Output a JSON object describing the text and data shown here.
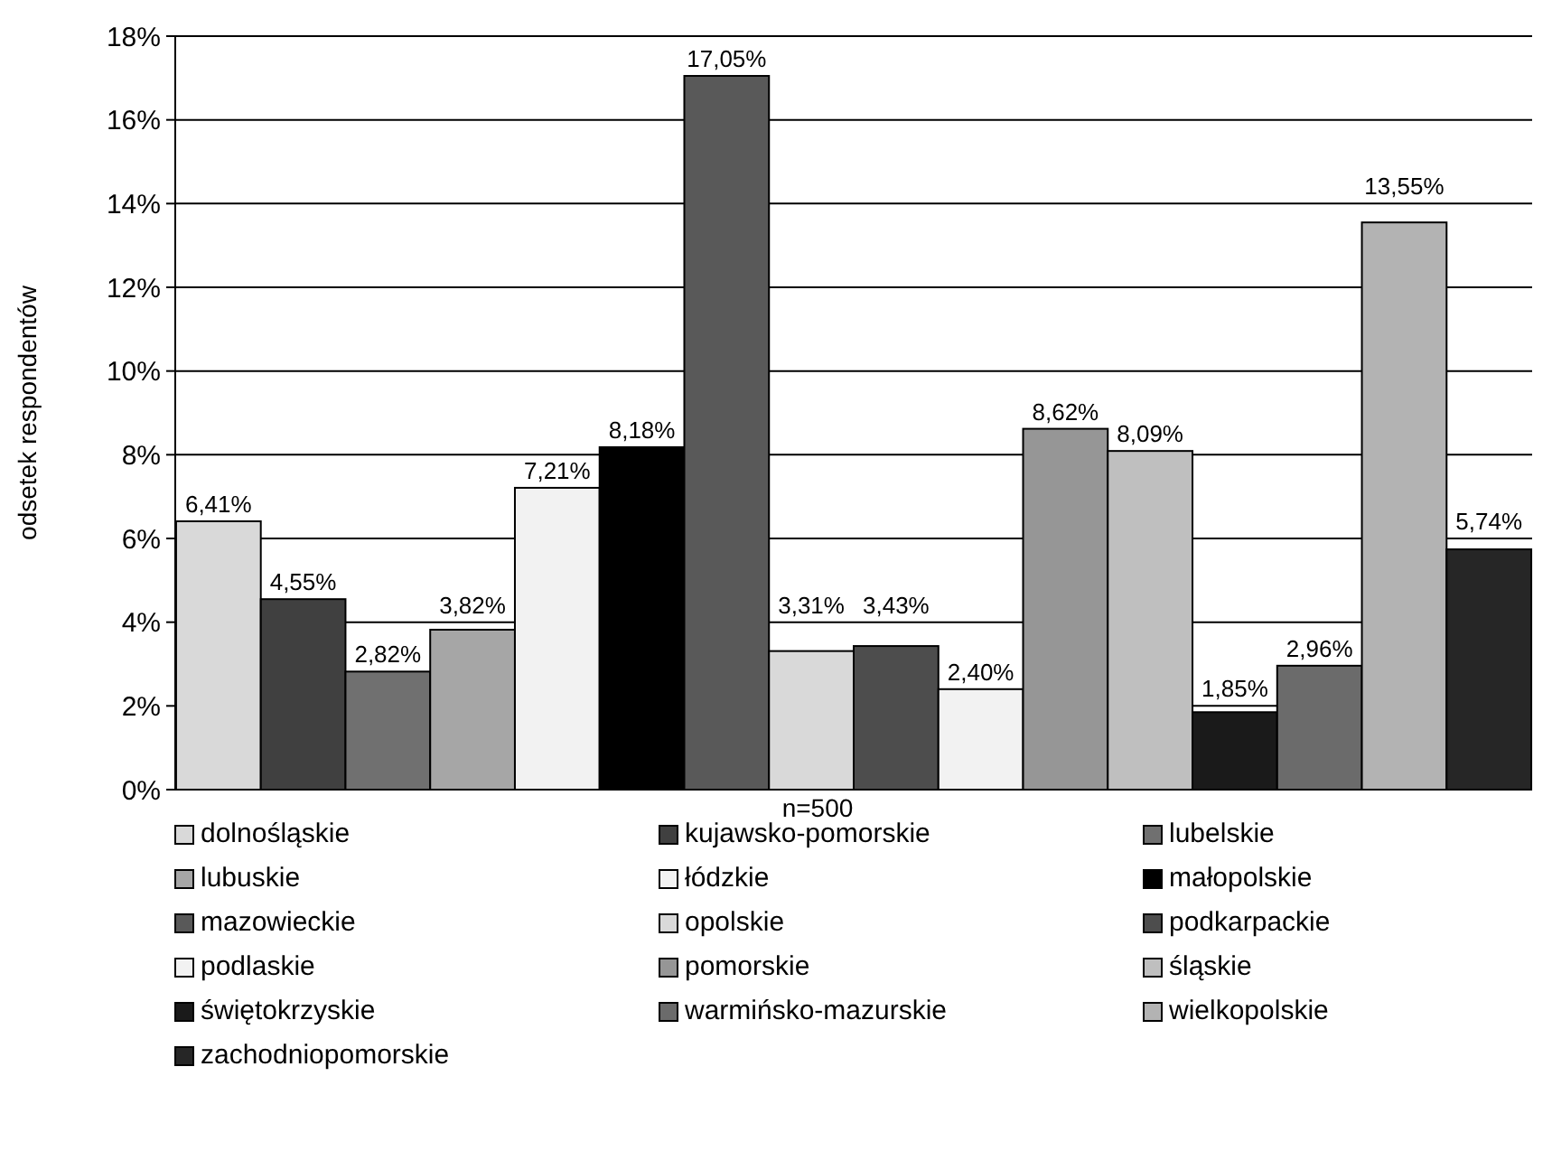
{
  "chart_data": {
    "type": "bar",
    "xlabel": "n=500",
    "ylabel": "odsetek respondentów",
    "categories": [
      null
    ],
    "ylim": [
      0,
      18
    ],
    "yticks": [
      {
        "value": 0,
        "label": "0%"
      },
      {
        "value": 2,
        "label": "2%"
      },
      {
        "value": 4,
        "label": "4%"
      },
      {
        "value": 6,
        "label": "6%"
      },
      {
        "value": 8,
        "label": "8%"
      },
      {
        "value": 10,
        "label": "10%"
      },
      {
        "value": 12,
        "label": "12%"
      },
      {
        "value": 14,
        "label": "14%"
      },
      {
        "value": 16,
        "label": "16%"
      },
      {
        "value": 18,
        "label": "18%"
      }
    ],
    "grid": "y",
    "legend": "bottom",
    "series": [
      {
        "name": "dolnośląskie",
        "color": "#d9d9d9",
        "values": [
          6.41
        ],
        "value_labels": [
          "6,41%"
        ]
      },
      {
        "name": "kujawsko-pomorskie",
        "color": "#404040",
        "values": [
          4.55
        ],
        "value_labels": [
          "4,55%"
        ]
      },
      {
        "name": "lubelskie",
        "color": "#707070",
        "values": [
          2.82
        ],
        "value_labels": [
          "2,82%"
        ]
      },
      {
        "name": "lubuskie",
        "color": "#a6a6a6",
        "values": [
          3.82
        ],
        "value_labels": [
          "3,82%"
        ]
      },
      {
        "name": "łódzkie",
        "color": "#f2f2f2",
        "values": [
          7.21
        ],
        "value_labels": [
          "7,21%"
        ]
      },
      {
        "name": "małopolskie",
        "color": "#000000",
        "values": [
          8.18
        ],
        "value_labels": [
          "8,18%"
        ]
      },
      {
        "name": "mazowieckie",
        "color": "#595959",
        "values": [
          17.05
        ],
        "value_labels": [
          "17,05%"
        ]
      },
      {
        "name": "opolskie",
        "color": "#d9d9d9",
        "values": [
          3.31
        ],
        "value_labels": [
          "3,31%"
        ]
      },
      {
        "name": "podkarpackie",
        "color": "#4d4d4d",
        "values": [
          3.43
        ],
        "value_labels": [
          "3,43%"
        ]
      },
      {
        "name": "podlaskie",
        "color": "#f2f2f2",
        "values": [
          2.4
        ],
        "value_labels": [
          "2,40%"
        ]
      },
      {
        "name": "pomorskie",
        "color": "#969696",
        "values": [
          8.62
        ],
        "value_labels": [
          "8,62%"
        ]
      },
      {
        "name": "śląskie",
        "color": "#bfbfbf",
        "values": [
          8.09
        ],
        "value_labels": [
          "8,09%"
        ]
      },
      {
        "name": "świętokrzyskie",
        "color": "#1a1a1a",
        "values": [
          1.85
        ],
        "value_labels": [
          "1,85%"
        ]
      },
      {
        "name": "warmińsko-mazurskie",
        "color": "#6b6b6b",
        "values": [
          2.96
        ],
        "value_labels": [
          "2,96%"
        ]
      },
      {
        "name": "wielkopolskie",
        "color": "#b3b3b3",
        "values": [
          13.55
        ],
        "value_labels": [
          "13,55%"
        ]
      },
      {
        "name": "zachodniopomorskie",
        "color": "#262626",
        "values": [
          5.74
        ],
        "value_labels": [
          "5,74%"
        ]
      }
    ]
  }
}
